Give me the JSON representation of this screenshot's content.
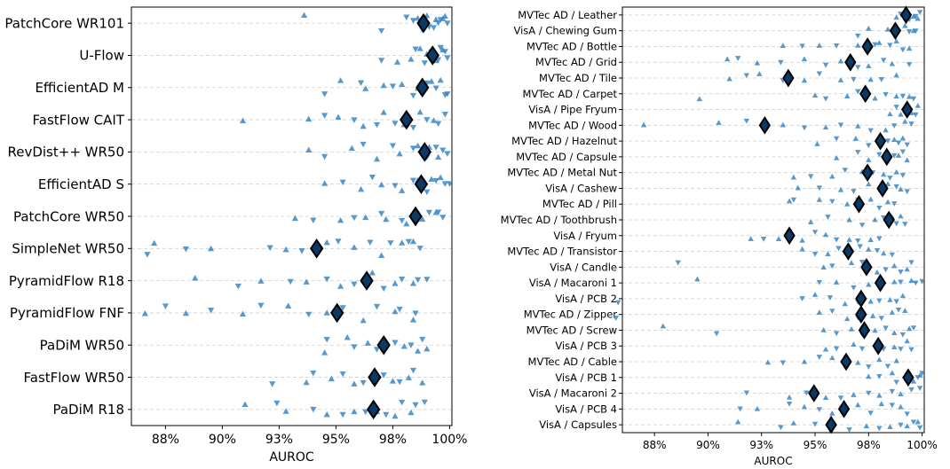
{
  "chart_data": [
    {
      "type": "scatter",
      "title": "",
      "xlabel": "AUROC",
      "ylabel": "",
      "xlim": [
        0.86,
        1.001
      ],
      "xticks": [
        0.875,
        0.9,
        0.925,
        0.95,
        0.975,
        1.0
      ],
      "xtick_labels": [
        "88%",
        "90%",
        "93%",
        "95%",
        "98%",
        "100%"
      ],
      "grid": "horizontal dashed",
      "marker_color": "#3a86c4",
      "mean_marker_color": "#0a3a66",
      "categories": [
        "PatchCore WR101",
        "U-Flow",
        "EfficientAD M",
        "FastFlow CAIT",
        "RevDist++ WR50",
        "EfficientAD S",
        "PatchCore WR50",
        "SimpleNet WR50",
        "PyramidFlow R18",
        "PyramidFlow FNF",
        "PaDiM WR50",
        "FastFlow WR50",
        "PaDiM R18"
      ],
      "means": [
        0.9885,
        0.9925,
        0.988,
        0.981,
        0.989,
        0.9875,
        0.985,
        0.9415,
        0.9635,
        0.9505,
        0.971,
        0.967,
        0.9665
      ],
      "points": [
        {
          "up": [
            0.936,
            0.986,
            0.99,
            0.994,
            0.997,
            0.998
          ],
          "down": [
            0.97,
            0.981,
            0.984,
            0.988,
            0.991,
            0.993,
            0.995,
            0.996,
            0.999
          ]
        },
        {
          "up": [
            0.977,
            0.983,
            0.987,
            0.99,
            0.994,
            0.997
          ],
          "down": [
            0.97,
            0.985,
            0.989,
            0.992,
            0.995,
            0.996,
            0.998,
            0.999
          ]
        },
        {
          "up": [
            0.952,
            0.963,
            0.971,
            0.979,
            0.986,
            0.992,
            0.996
          ],
          "down": [
            0.945,
            0.961,
            0.975,
            0.984,
            0.99,
            0.994,
            0.998,
            0.999
          ]
        },
        {
          "up": [
            0.909,
            0.938,
            0.951,
            0.962,
            0.971,
            0.98,
            0.987,
            0.993
          ],
          "down": [
            0.945,
            0.958,
            0.968,
            0.976,
            0.984,
            0.99,
            0.995,
            0.998
          ]
        },
        {
          "up": [
            0.938,
            0.957,
            0.968,
            0.978,
            0.986,
            0.991,
            0.995
          ],
          "down": [
            0.945,
            0.962,
            0.975,
            0.984,
            0.99,
            0.994,
            0.997,
            0.999
          ]
        },
        {
          "up": [
            0.945,
            0.961,
            0.97,
            0.979,
            0.986,
            0.992,
            0.996
          ],
          "down": [
            0.953,
            0.966,
            0.976,
            0.984,
            0.99,
            0.994,
            0.998,
            1.0
          ]
        },
        {
          "up": [
            0.932,
            0.952,
            0.963,
            0.972,
            0.981,
            0.988,
            0.994
          ],
          "down": [
            0.94,
            0.958,
            0.97,
            0.979,
            0.986,
            0.991,
            0.995,
            0.997
          ]
        },
        {
          "up": [
            0.87,
            0.895,
            0.928,
            0.946,
            0.958,
            0.97,
            0.979,
            0.984
          ],
          "down": [
            0.867,
            0.884,
            0.921,
            0.935,
            0.951,
            0.965,
            0.974,
            0.982,
            0.987
          ]
        },
        {
          "up": [
            0.888,
            0.917,
            0.937,
            0.952,
            0.966,
            0.976,
            0.984
          ],
          "down": [
            0.907,
            0.93,
            0.946,
            0.958,
            0.971,
            0.979,
            0.986,
            0.99
          ]
        },
        {
          "up": [
            0.866,
            0.884,
            0.909,
            0.929,
            0.946,
            0.962,
            0.976,
            0.984
          ],
          "down": [
            0.875,
            0.895,
            0.917,
            0.938,
            0.953,
            0.968,
            0.978,
            0.985
          ]
        },
        {
          "up": [
            0.945,
            0.955,
            0.964,
            0.972,
            0.98,
            0.986,
            0.99
          ],
          "down": [
            0.946,
            0.958,
            0.968,
            0.976,
            0.983,
            0.988
          ]
        },
        {
          "up": [
            0.937,
            0.948,
            0.958,
            0.967,
            0.975,
            0.982,
            0.988
          ],
          "down": [
            0.922,
            0.94,
            0.953,
            0.962,
            0.971,
            0.978,
            0.984
          ]
        },
        {
          "up": [
            0.91,
            0.928,
            0.946,
            0.958,
            0.968,
            0.976,
            0.983
          ],
          "down": [
            0.924,
            0.94,
            0.953,
            0.963,
            0.972,
            0.979,
            0.985,
            0.989
          ]
        }
      ]
    },
    {
      "type": "scatter",
      "title": "",
      "xlabel": "AUROC",
      "ylabel": "",
      "xlim": [
        0.86,
        1.001
      ],
      "xticks": [
        0.875,
        0.9,
        0.925,
        0.95,
        0.975,
        1.0
      ],
      "xtick_labels": [
        "88%",
        "90%",
        "93%",
        "95%",
        "98%",
        "100%"
      ],
      "grid": "horizontal dashed",
      "marker_color": "#3a86c4",
      "mean_marker_color": "#0a3a66",
      "categories": [
        "MVTec AD / Leather",
        "VisA / Chewing Gum",
        "MVTec AD / Bottle",
        "MVTec AD / Grid",
        "MVTec AD / Tile",
        "MVTec AD / Carpet",
        "VisA / Pipe Fryum",
        "MVTec AD / Wood",
        "MVTec AD / Hazelnut",
        "MVTec AD / Capsule",
        "MVTec AD / Metal Nut",
        "VisA / Cashew",
        "MVTec AD / Pill",
        "MVTec AD / Toothbrush",
        "VisA / Fryum",
        "MVTec AD / Transistor",
        "VisA / Candle",
        "VisA / Macaroni 1",
        "VisA / PCB 2",
        "MVTec AD / Zipper",
        "MVTec AD / Screw",
        "VisA / PCB 3",
        "MVTec AD / Cable",
        "VisA / PCB 1",
        "VisA / Macaroni 2",
        "VisA / PCB 4",
        "VisA / Capsules"
      ],
      "means": [
        0.9925,
        0.9875,
        0.9745,
        0.9665,
        0.9375,
        0.9735,
        0.993,
        0.9265,
        0.9805,
        0.9835,
        0.9745,
        0.9815,
        0.9705,
        0.9845,
        0.938,
        0.9655,
        0.974,
        0.9805,
        0.9715,
        0.9715,
        0.973,
        0.9795,
        0.9645,
        0.9935,
        0.9495,
        0.9635,
        0.9575
      ],
      "points": [
        {
          "up": [
            0.988,
            0.992,
            0.996,
            0.998
          ],
          "down": [
            0.99,
            0.994,
            0.997,
            0.999
          ]
        },
        {
          "up": [
            0.975,
            0.984,
            0.992,
            0.996
          ],
          "down": [
            0.97,
            0.989,
            0.994,
            0.997
          ]
        },
        {
          "up": [
            0.935,
            0.952,
            0.97,
            0.98,
            0.988,
            0.994
          ],
          "down": [
            0.944,
            0.96,
            0.978,
            0.985,
            0.991
          ]
        },
        {
          "up": [
            0.909,
            0.923,
            0.945,
            0.962,
            0.975,
            0.986
          ],
          "down": [
            0.914,
            0.934,
            0.955,
            0.97,
            0.982,
            0.994
          ]
        },
        {
          "up": [
            0.91,
            0.924,
            0.945,
            0.962,
            0.976,
            0.988
          ],
          "down": [
            0.918,
            0.935,
            0.952,
            0.968,
            0.981
          ]
        },
        {
          "up": [
            0.896,
            0.95,
            0.965,
            0.978,
            0.988,
            0.994
          ],
          "down": [
            0.955,
            0.97,
            0.983,
            0.991,
            0.996
          ]
        },
        {
          "up": [
            0.985,
            0.99,
            0.995,
            0.998
          ],
          "down": [
            0.988,
            0.993,
            0.997
          ]
        },
        {
          "up": [
            0.87,
            0.905,
            0.935,
            0.955,
            0.97,
            0.983,
            0.992
          ],
          "down": [
            0.918,
            0.945,
            0.962,
            0.976,
            0.987,
            0.995
          ]
        },
        {
          "up": [
            0.951,
            0.969,
            0.98,
            0.987,
            0.991
          ],
          "down": [
            0.96,
            0.975,
            0.984,
            0.989,
            0.993
          ]
        },
        {
          "up": [
            0.96,
            0.975,
            0.984,
            0.989,
            0.993
          ],
          "down": [
            0.97,
            0.98,
            0.987,
            0.991
          ]
        },
        {
          "up": [
            0.94,
            0.958,
            0.972,
            0.982,
            0.988
          ],
          "down": [
            0.948,
            0.964,
            0.977,
            0.985,
            0.991
          ]
        },
        {
          "up": [
            0.942,
            0.962,
            0.975,
            0.984,
            0.99
          ],
          "down": [
            0.952,
            0.968,
            0.98,
            0.988,
            0.993
          ]
        },
        {
          "up": [
            0.938,
            0.952,
            0.965,
            0.976,
            0.984
          ],
          "down": [
            0.94,
            0.958,
            0.97,
            0.98,
            0.987
          ]
        },
        {
          "up": [
            0.948,
            0.966,
            0.978,
            0.986,
            0.99
          ],
          "down": [
            0.956,
            0.972,
            0.982,
            0.988,
            0.992
          ]
        },
        {
          "up": [
            0.92,
            0.933,
            0.944,
            0.955,
            0.966,
            0.976
          ],
          "down": [
            0.926,
            0.938,
            0.95,
            0.96,
            0.97,
            0.98
          ]
        },
        {
          "up": [
            0.944,
            0.956,
            0.966,
            0.975,
            0.982
          ],
          "down": [
            0.95,
            0.961,
            0.971,
            0.979,
            0.986
          ]
        },
        {
          "up": [
            0.954,
            0.967,
            0.979,
            0.987,
            0.993
          ],
          "down": [
            0.886,
            0.958,
            0.972,
            0.983,
            0.99,
            0.995
          ]
        },
        {
          "up": [
            0.895,
            0.96,
            0.975,
            0.987,
            0.995
          ],
          "down": [
            0.952,
            0.968,
            0.98,
            0.99,
            0.997,
            1.0
          ]
        },
        {
          "up": [
            0.95,
            0.964,
            0.976,
            0.985,
            0.991
          ],
          "down": [
            0.858,
            0.944,
            0.957,
            0.97,
            0.98,
            0.988
          ]
        },
        {
          "up": [
            0.952,
            0.965,
            0.977,
            0.986,
            0.992
          ],
          "down": [
            0.857,
            0.958,
            0.97,
            0.981,
            0.989
          ]
        },
        {
          "up": [
            0.879,
            0.954,
            0.967,
            0.978,
            0.987,
            0.994
          ],
          "down": [
            0.904,
            0.96,
            0.972,
            0.983,
            0.991,
            0.996
          ]
        },
        {
          "up": [
            0.955,
            0.968,
            0.979,
            0.987,
            0.993
          ],
          "down": [
            0.96,
            0.972,
            0.982,
            0.99,
            0.995
          ]
        },
        {
          "up": [
            0.928,
            0.945,
            0.958,
            0.97,
            0.98,
            0.988
          ],
          "down": [
            0.935,
            0.952,
            0.964,
            0.975,
            0.984
          ]
        },
        {
          "up": [
            0.975,
            0.986,
            0.992,
            0.996,
            0.999
          ],
          "down": [
            0.98,
            0.988,
            0.994,
            0.998,
            1.0
          ]
        },
        {
          "up": [
            0.938,
            0.955,
            0.968,
            0.98,
            0.99
          ],
          "down": [
            0.918,
            0.946,
            0.962,
            0.975,
            0.986,
            0.995,
            0.999
          ]
        },
        {
          "up": [
            0.923,
            0.945,
            0.958,
            0.97,
            0.981,
            0.99
          ],
          "down": [
            0.915,
            0.938,
            0.952,
            0.964,
            0.976,
            0.986,
            0.993
          ]
        },
        {
          "up": [
            0.914,
            0.94,
            0.958,
            0.974,
            0.985,
            0.993,
            0.998
          ],
          "down": [
            0.934,
            0.95,
            0.966,
            0.98,
            0.99,
            0.996,
            0.999
          ]
        }
      ]
    }
  ]
}
